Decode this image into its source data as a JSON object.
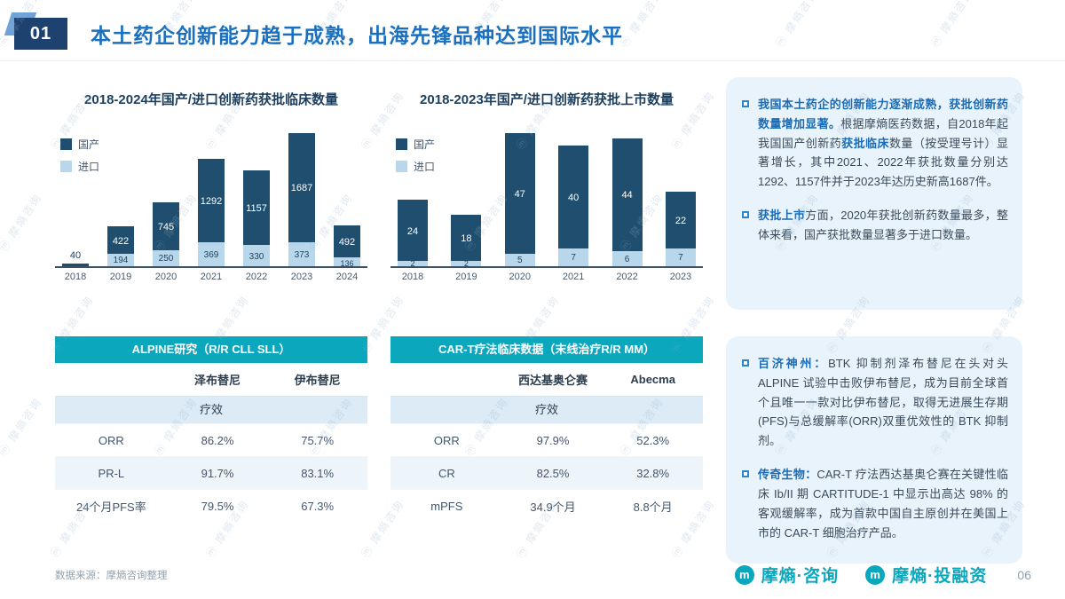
{
  "header": {
    "number": "01",
    "title": "本土药企创新能力趋于成熟，出海先锋品种达到国际水平"
  },
  "chart_data": [
    {
      "type": "bar",
      "stacked": true,
      "title": "2018-2024年国产/进口创新药获批临床数量",
      "categories": [
        "2018",
        "2019",
        "2020",
        "2021",
        "2022",
        "2023",
        "2024"
      ],
      "series": [
        {
          "name": "国产",
          "color": "#1f4e6e",
          "values": [
            40,
            422,
            745,
            1292,
            1157,
            1687,
            492
          ]
        },
        {
          "name": "进口",
          "color": "#b9d7ea",
          "values": [
            null,
            194,
            250,
            369,
            330,
            373,
            136
          ]
        }
      ],
      "legend_position": "top-left",
      "ylim": [
        0,
        2060
      ]
    },
    {
      "type": "bar",
      "stacked": true,
      "title": "2018-2023年国产/进口创新药获批上市数量",
      "categories": [
        "2018",
        "2019",
        "2020",
        "2021",
        "2022",
        "2023"
      ],
      "series": [
        {
          "name": "国产",
          "color": "#1f4e6e",
          "values": [
            24,
            18,
            47,
            40,
            44,
            22
          ]
        },
        {
          "name": "进口",
          "color": "#b9d7ea",
          "values": [
            2,
            2,
            5,
            7,
            6,
            7
          ]
        }
      ],
      "legend_position": "top-left",
      "ylim": [
        0,
        52
      ]
    }
  ],
  "tables": [
    {
      "title": "ALPINE研究（R/R CLL SLL）",
      "columns": [
        "",
        "泽布替尼",
        "伊布替尼"
      ],
      "section_label": "疗效",
      "rows": [
        [
          "ORR",
          "86.2%",
          "75.7%"
        ],
        [
          "PR-L",
          "91.7%",
          "83.1%"
        ],
        [
          "24个月PFS率",
          "79.5%",
          "67.3%"
        ]
      ]
    },
    {
      "title": "CAR-T疗法临床数据（末线治疗R/R MM）",
      "columns": [
        "",
        "西达基奥仑赛",
        "Abecma"
      ],
      "section_label": "疗效",
      "rows": [
        [
          "ORR",
          "97.9%",
          "52.3%"
        ],
        [
          "CR",
          "82.5%",
          "32.8%"
        ],
        [
          "mPFS",
          "34.9个月",
          "8.8个月"
        ]
      ]
    }
  ],
  "panels": [
    {
      "bullets": [
        {
          "segments": [
            {
              "text": "我国本土药企的创新能力逐渐成熟，获批创新药数量增加显著。",
              "style": "blue-bold"
            },
            {
              "text": "根据摩熵医药数据，自2018年起我国国产创新药",
              "style": "normal"
            },
            {
              "text": "获批临床",
              "style": "blue-bold"
            },
            {
              "text": "数量（按受理号计）显著增长，其中2021、2022年获批数量分别达1292、1157件并于2023年达历史新高1687件。",
              "style": "normal"
            }
          ]
        },
        {
          "segments": [
            {
              "text": "获批上市",
              "style": "blue-bold"
            },
            {
              "text": "方面，2020年获批创新药数量最多，整体来看，国产获批数量显著多于进口数量。",
              "style": "normal"
            }
          ]
        }
      ]
    },
    {
      "bullets": [
        {
          "segments": [
            {
              "text": "百济神州：",
              "style": "blue-bold"
            },
            {
              "text": "BTK 抑制剂泽布替尼在头对头 ALPINE 试验中击败伊布替尼，成为目前全球首个且唯一一款对比伊布替尼，取得无进展生存期(PFS)与总缓解率(ORR)双重优效性的 BTK 抑制剂。",
              "style": "normal"
            }
          ]
        },
        {
          "segments": [
            {
              "text": "传奇生物：",
              "style": "blue-bold"
            },
            {
              "text": "CAR-T 疗法西达基奥仑赛在关键性临床 Ib/II 期 CARTITUDE-1 中显示出高达 98% 的客观缓解率，成为首款中国自主原创并在美国上市的 CAR-T 细胞治疗产品。",
              "style": "normal"
            }
          ]
        }
      ]
    }
  ],
  "footer": {
    "source": "数据来源：摩熵咨询整理",
    "logos": [
      "摩熵·咨询",
      "摩熵·投融资"
    ],
    "page": "06"
  },
  "watermark": "摩熵咨询",
  "colors": {
    "accent_blue": "#1b6cb5",
    "dark_bar": "#1f4e6e",
    "light_bar": "#b9d7ea",
    "teal": "#0aa7bd",
    "panel_bg": "#e9f3fb"
  }
}
